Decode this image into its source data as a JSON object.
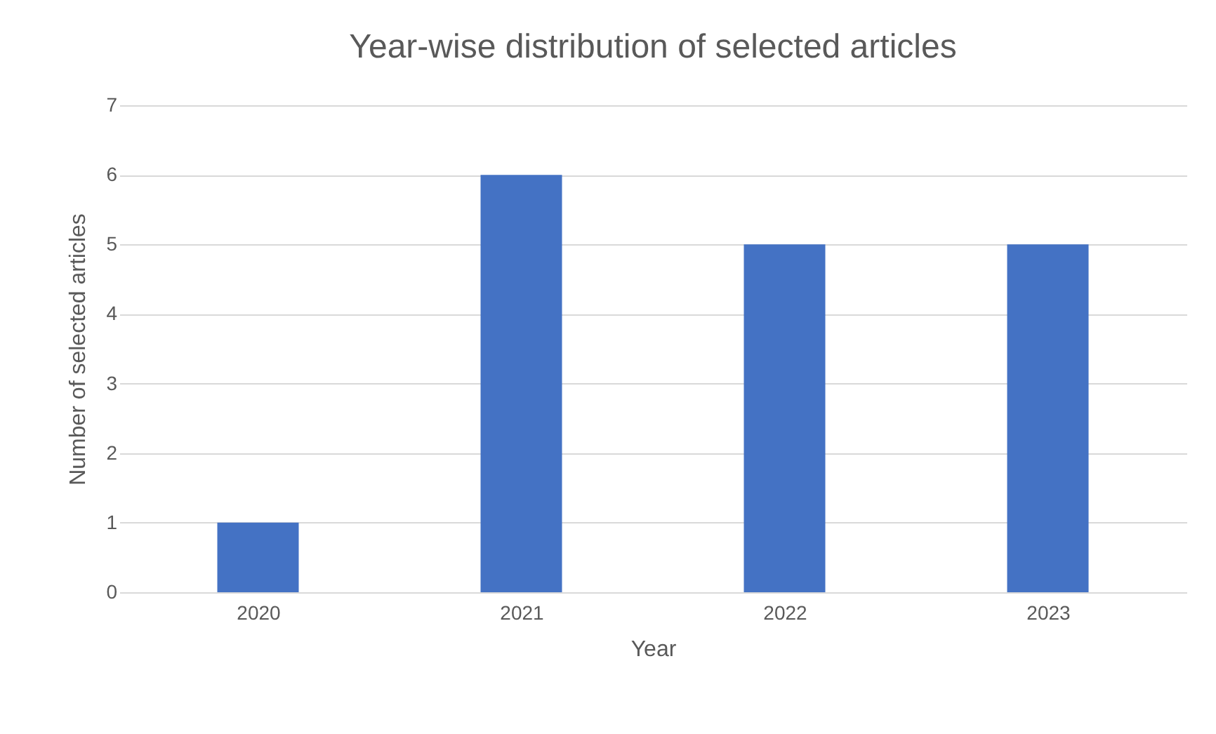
{
  "chart_data": {
    "type": "bar",
    "title": "Year-wise distribution of selected articles",
    "xlabel": "Year",
    "ylabel": "Number of selected articles",
    "categories": [
      "2020",
      "2021",
      "2022",
      "2023"
    ],
    "series": [
      {
        "color": "#4472c4",
        "values": [
          1,
          6,
          5,
          5
        ]
      }
    ],
    "ylim": [
      0,
      7
    ],
    "yticks": [
      0,
      1,
      2,
      3,
      4,
      5,
      6,
      7
    ],
    "grid": "y"
  }
}
